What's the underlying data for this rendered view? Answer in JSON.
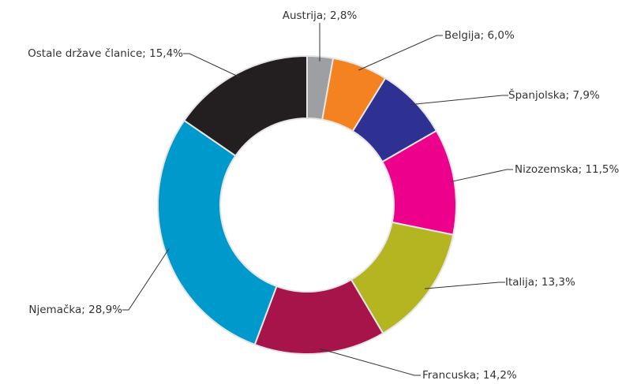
{
  "chart_data": {
    "type": "donut",
    "values": [
      2.8,
      6.0,
      7.9,
      11.5,
      13.3,
      14.2,
      28.9,
      15.4
    ],
    "value_labels": [
      "Austrija; 2,8%",
      "Belgija; 6,0%",
      "Španjolska; 7,9%",
      "Nizozemska; 11,5%",
      "Italija; 13,3%",
      "Francuska; 14,2%",
      "Njemačka; 28,9%",
      "Ostale države članice; 15,4%"
    ],
    "colors": [
      "#9d9fa2",
      "#f58220",
      "#2e3192",
      "#ec008c",
      "#b5b521",
      "#a6144a",
      "#0099cc",
      "#231f20"
    ]
  }
}
